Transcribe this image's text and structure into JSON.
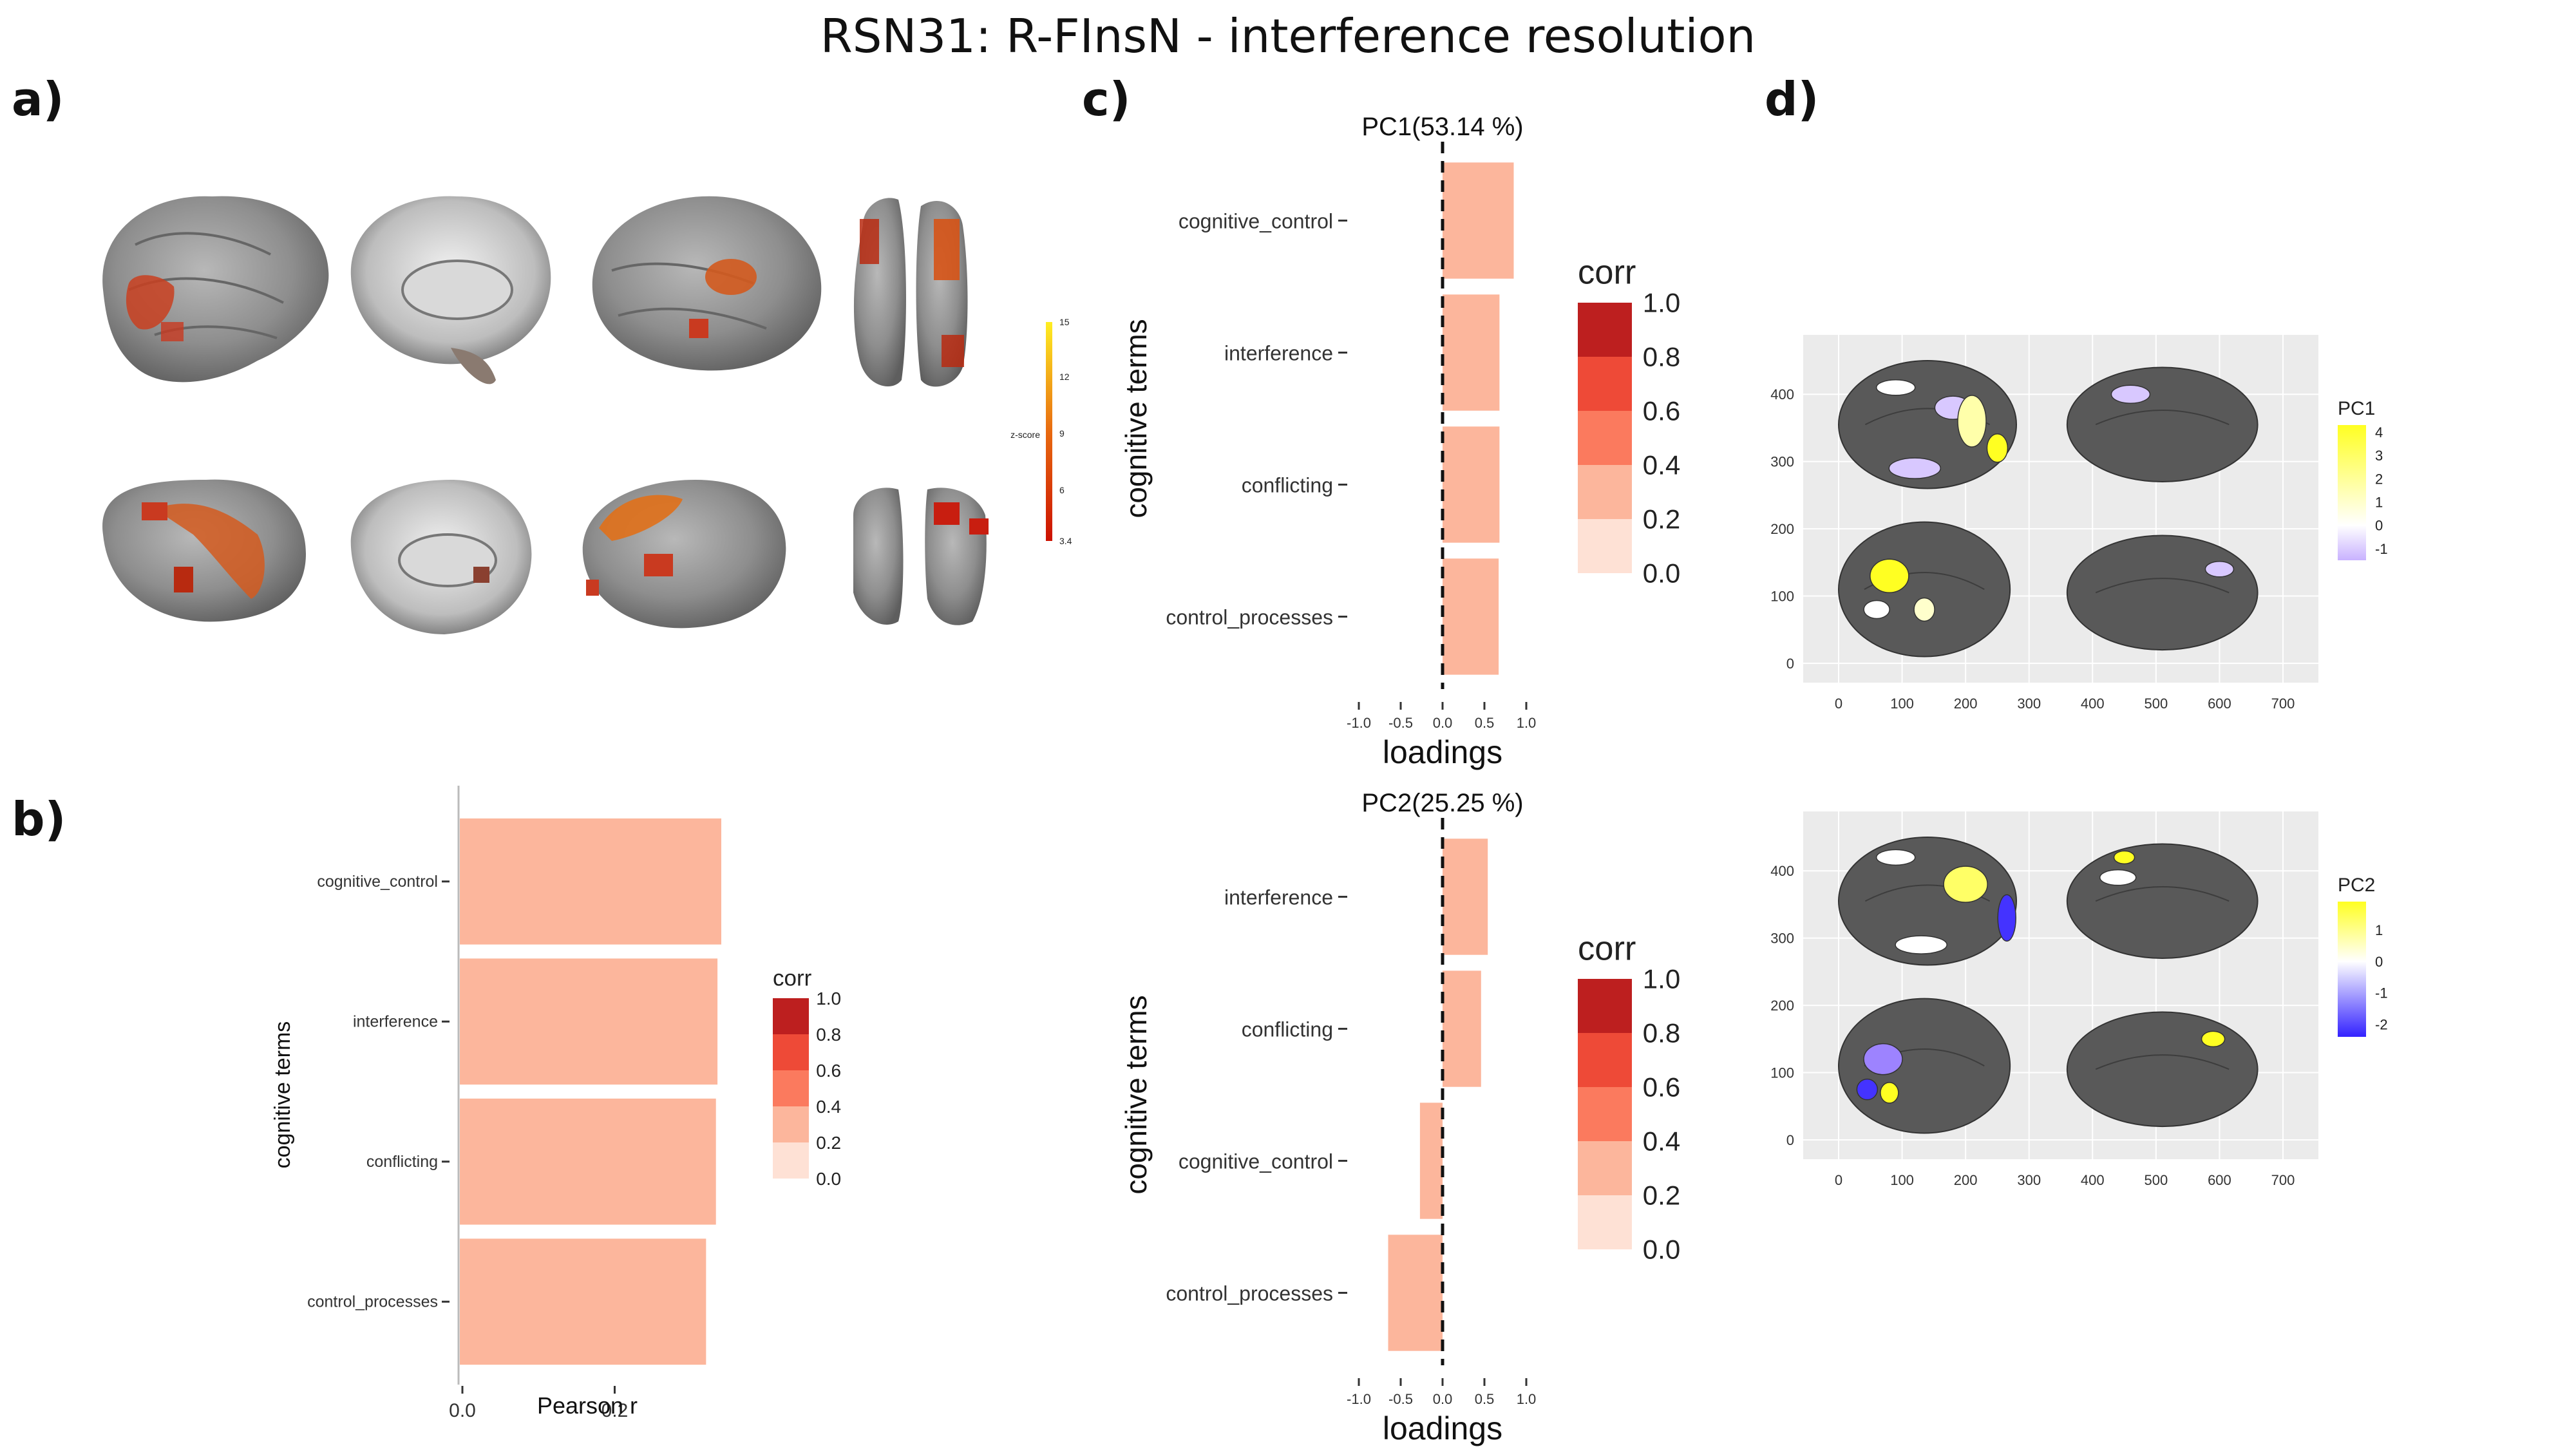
{
  "title": "RSN31: R-FInsN - interference resolution",
  "panels": {
    "a": "a)",
    "b": "b)",
    "c": "c)",
    "d": "d)"
  },
  "brain_colorbar": {
    "label": "z-score",
    "ticks": [
      "15",
      "12",
      "9",
      "6",
      "3.4"
    ]
  },
  "corr_legend": {
    "title": "corr",
    "levels": [
      "1.0",
      "0.8",
      "0.6",
      "0.4",
      "0.2",
      "0.0"
    ],
    "colors": [
      "#bd1f1f",
      "#ee4a37",
      "#fb7a5e",
      "#fcb69c",
      "#fee1d5"
    ]
  },
  "chart_data": [
    {
      "id": "b",
      "type": "bar",
      "orientation": "horizontal",
      "categories": [
        "cognitive_control",
        "interference",
        "conflicting",
        "control_processes"
      ],
      "values": [
        0.34,
        0.335,
        0.333,
        0.32
      ],
      "xlabel": "Pearson r",
      "ylabel": "cognitive terms",
      "xticks": [
        "0.0",
        "0.2"
      ],
      "xlim": [
        0,
        0.34
      ],
      "bar_color": "#fcb69c",
      "legend_title": "corr",
      "legend": "right"
    },
    {
      "id": "c1",
      "type": "bar",
      "orientation": "horizontal",
      "title": "PC1(53.14 %)",
      "categories": [
        "cognitive_control",
        "interference",
        "conflicting",
        "control_processes"
      ],
      "values": [
        0.85,
        0.68,
        0.68,
        0.67
      ],
      "xlabel": "loadings",
      "ylabel": "cognitive terms",
      "xticks": [
        "-1.0",
        "-0.5",
        "0.0",
        "0.5",
        "1.0"
      ],
      "xlim": [
        -1.0,
        1.0
      ],
      "zero_line": "dashed",
      "bar_color": "#fcb69c",
      "legend_title": "corr",
      "legend": "right"
    },
    {
      "id": "c2",
      "type": "bar",
      "orientation": "horizontal",
      "title": "PC2(25.25 %)",
      "categories": [
        "interference",
        "conflicting",
        "cognitive_control",
        "control_processes"
      ],
      "values": [
        0.54,
        0.46,
        -0.27,
        -0.65
      ],
      "xlabel": "loadings",
      "ylabel": "cognitive terms",
      "xticks": [
        "-1.0",
        "-0.5",
        "0.0",
        "0.5",
        "1.0"
      ],
      "xlim": [
        -1.0,
        1.0
      ],
      "zero_line": "dashed",
      "bar_color": "#fcb69c",
      "legend_title": "corr",
      "legend": "right"
    },
    {
      "id": "d1",
      "type": "heatmap",
      "description_axes": "brain surface map",
      "xticks": [
        "0",
        "100",
        "200",
        "300",
        "400",
        "500",
        "600",
        "700"
      ],
      "yticks": [
        "0",
        "100",
        "200",
        "300",
        "400"
      ],
      "xlim": [
        0,
        700
      ],
      "ylim": [
        0,
        450
      ],
      "legend_title": "PC1",
      "legend_ticks": [
        "4",
        "3",
        "2",
        "1",
        "0",
        "-1"
      ],
      "color_range": [
        -1.5,
        4.3
      ],
      "colors": [
        "#c9b2ff",
        "#ffffff",
        "#ffff22"
      ]
    },
    {
      "id": "d2",
      "type": "heatmap",
      "xticks": [
        "0",
        "100",
        "200",
        "300",
        "400",
        "500",
        "600",
        "700"
      ],
      "yticks": [
        "0",
        "100",
        "200",
        "300",
        "400"
      ],
      "xlim": [
        0,
        700
      ],
      "ylim": [
        0,
        450
      ],
      "legend_title": "PC2",
      "legend_ticks": [
        "1",
        "0",
        "-1",
        "-2"
      ],
      "color_range": [
        -2.4,
        1.9
      ],
      "colors": [
        "#3322ff",
        "#ffffff",
        "#ffff22"
      ]
    }
  ]
}
